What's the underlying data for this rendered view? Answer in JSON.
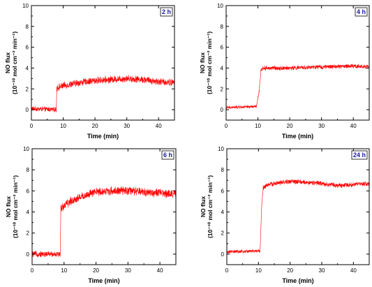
{
  "chart_data": [
    {
      "type": "line",
      "badge": "2 h",
      "xlabel": "Time (min)",
      "ylabel": "NO flux",
      "ylabel_units": "(10⁻¹⁰ mol cm⁻² min⁻¹)",
      "xlim": [
        0,
        45
      ],
      "ylim": [
        -1,
        10
      ],
      "xticks": [
        0,
        10,
        20,
        30,
        40
      ],
      "yticks": [
        0,
        2,
        4,
        6,
        8,
        10
      ],
      "color": "#ff0000",
      "series": [
        {
          "x": [
            0,
            7.8,
            8,
            10,
            15,
            20,
            25,
            30,
            35,
            40,
            45
          ],
          "y": [
            0.1,
            0.0,
            2.1,
            2.3,
            2.6,
            2.8,
            2.9,
            3.0,
            2.9,
            2.7,
            2.6
          ],
          "noise": 0.3
        }
      ]
    },
    {
      "type": "line",
      "badge": "4 h",
      "xlabel": "Time (min)",
      "ylabel": "NO flux",
      "ylabel_units": "(10⁻¹⁰ mol cm⁻² min⁻¹)",
      "xlim": [
        0,
        45
      ],
      "ylim": [
        -1,
        10
      ],
      "xticks": [
        0,
        10,
        20,
        30,
        40
      ],
      "yticks": [
        0,
        2,
        4,
        6,
        8,
        10
      ],
      "color": "#ff0000",
      "series": [
        {
          "x": [
            0,
            9.5,
            10.3,
            11,
            12,
            20,
            30,
            40,
            45
          ],
          "y": [
            0.2,
            0.3,
            1.5,
            3.9,
            4.0,
            4.0,
            4.1,
            4.2,
            4.1
          ],
          "noise": 0.18
        }
      ]
    },
    {
      "type": "line",
      "badge": "6 h",
      "xlabel": "Time (min)",
      "ylabel": "NO flux",
      "ylabel_units": "(10⁻¹⁰ mol cm⁻² min⁻¹)",
      "xlim": [
        0,
        45
      ],
      "ylim": [
        -1,
        10
      ],
      "xticks": [
        0,
        10,
        20,
        30,
        40
      ],
      "yticks": [
        0,
        2,
        4,
        6,
        8,
        10
      ],
      "color": "#ff0000",
      "series": [
        {
          "x": [
            0,
            8.8,
            9,
            10,
            12,
            15,
            20,
            25,
            30,
            35,
            40,
            45
          ],
          "y": [
            0.0,
            0.0,
            4.3,
            4.6,
            5.0,
            5.4,
            5.9,
            6.0,
            6.0,
            5.9,
            5.8,
            5.7
          ],
          "noise": 0.35
        }
      ]
    },
    {
      "type": "line",
      "badge": "24 h",
      "xlabel": "Time (min)",
      "ylabel": "NO flux",
      "ylabel_units": "(10⁻¹⁰ mol cm⁻² min⁻¹)",
      "xlim": [
        0,
        45
      ],
      "ylim": [
        -1,
        10
      ],
      "xticks": [
        0,
        10,
        20,
        30,
        40
      ],
      "yticks": [
        0,
        2,
        4,
        6,
        8,
        10
      ],
      "color": "#ff0000",
      "series": [
        {
          "x": [
            0,
            10.5,
            11,
            11.5,
            13,
            20,
            30,
            35,
            40,
            45
          ],
          "y": [
            0.2,
            0.3,
            4.5,
            6.3,
            6.6,
            6.9,
            6.7,
            6.5,
            6.6,
            6.7
          ],
          "noise": 0.2
        }
      ]
    }
  ]
}
